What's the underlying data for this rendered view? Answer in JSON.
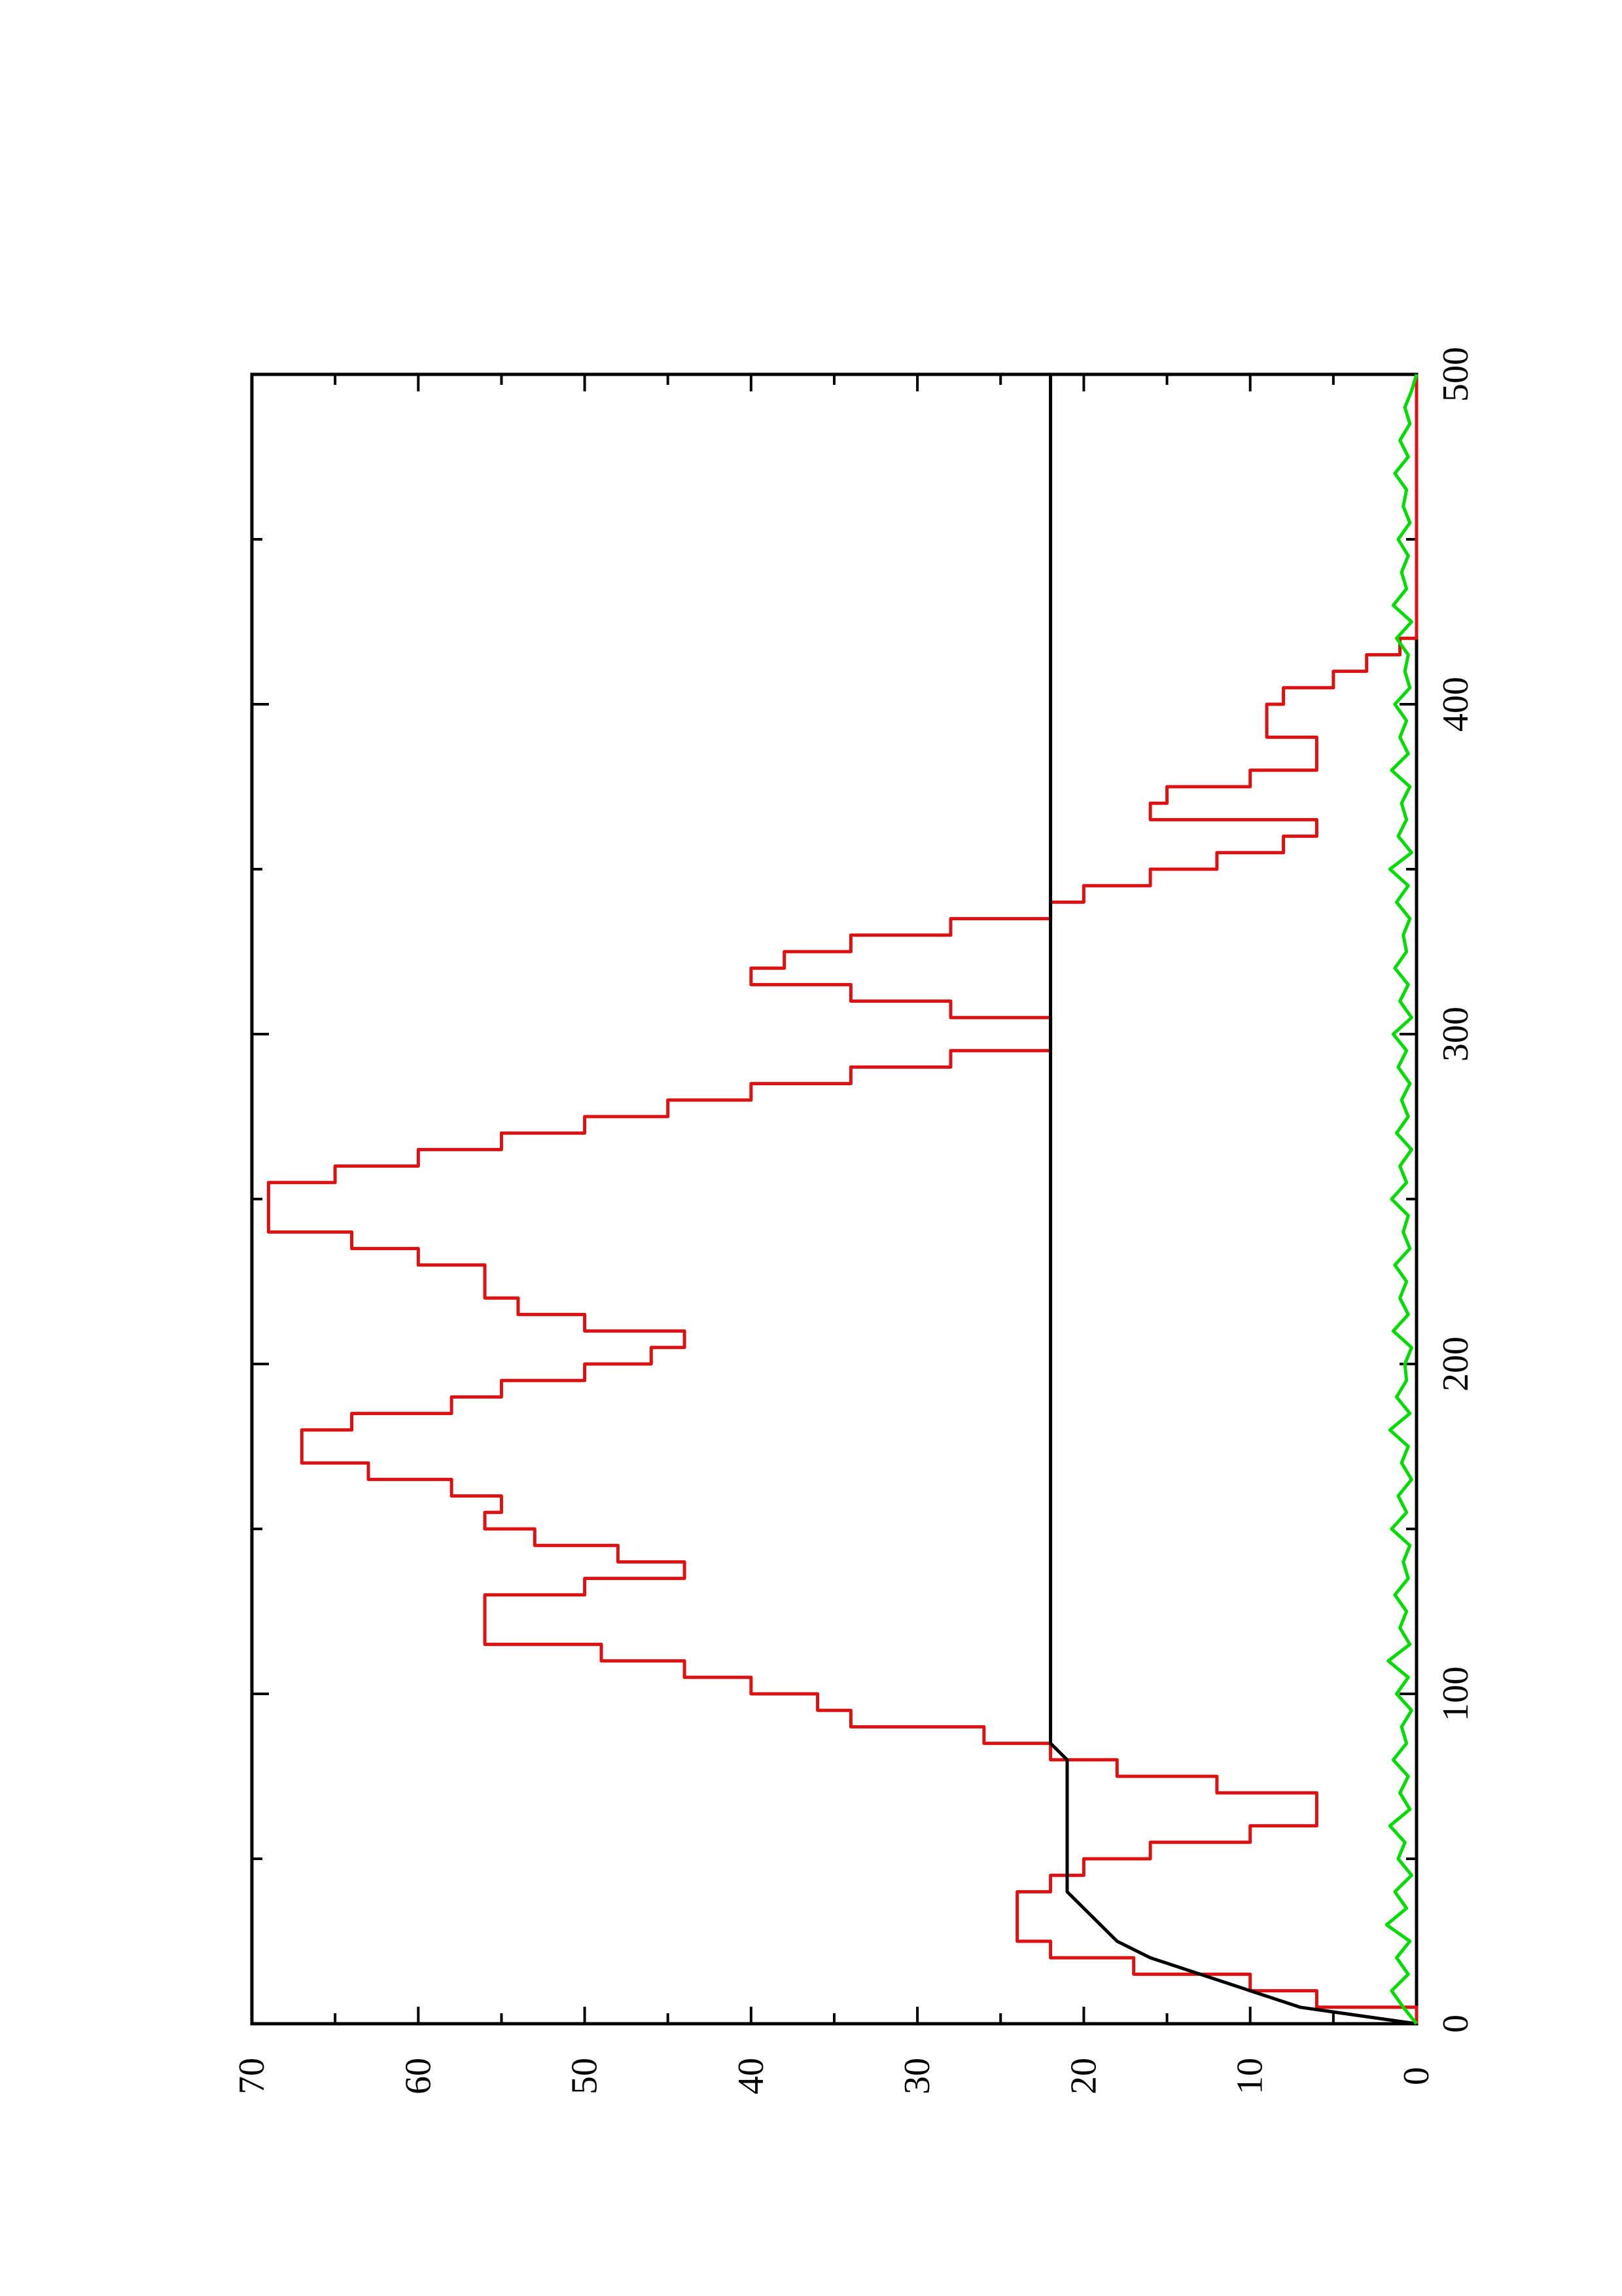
{
  "chart_data": {
    "type": "line",
    "title": "",
    "xlabel": "",
    "ylabel": "",
    "xlim": [
      0,
      500
    ],
    "ylim": [
      0,
      70
    ],
    "x_ticks": [
      0,
      100,
      200,
      300,
      400,
      500
    ],
    "y_ticks": [
      0,
      10,
      20,
      30,
      40,
      50,
      60,
      70
    ],
    "x_tick_labels": [
      "0",
      "100",
      "200",
      "300",
      "400",
      "500"
    ],
    "y_tick_labels": [
      "0",
      "10",
      "20",
      "30",
      "40",
      "50",
      "60",
      "70"
    ],
    "grid": false,
    "orientation": "rotated 90 degrees counter-clockwise",
    "series": [
      {
        "color": "#dd1111",
        "step": true,
        "x": [
          0,
          5,
          10,
          15,
          20,
          25,
          30,
          35,
          40,
          45,
          50,
          55,
          60,
          65,
          70,
          75,
          80,
          85,
          90,
          95,
          100,
          105,
          110,
          115,
          120,
          125,
          130,
          135,
          140,
          145,
          150,
          155,
          160,
          165,
          170,
          175,
          180,
          185,
          190,
          195,
          200,
          205,
          210,
          215,
          220,
          225,
          230,
          235,
          240,
          245,
          250,
          255,
          260,
          265,
          270,
          275,
          280,
          285,
          290,
          295,
          300,
          305,
          310,
          315,
          320,
          325,
          330,
          335,
          340,
          345,
          350,
          355,
          360,
          365,
          370,
          375,
          380,
          385,
          390,
          395,
          400,
          405,
          410,
          415,
          420,
          425,
          430,
          435,
          440,
          445,
          450,
          455,
          460,
          465,
          470,
          475,
          480,
          485,
          490,
          495,
          500
        ],
        "y": [
          0,
          6,
          10,
          17,
          22,
          24,
          24,
          24,
          22,
          20,
          16,
          10,
          6,
          6,
          12,
          18,
          22,
          26,
          34,
          36,
          40,
          44,
          49,
          56,
          56,
          56,
          50,
          44,
          48,
          53,
          56,
          55,
          58,
          63,
          67,
          67,
          64,
          58,
          55,
          50,
          46,
          44,
          50,
          54,
          56,
          56,
          60,
          64,
          69,
          69,
          69,
          65,
          60,
          55,
          50,
          45,
          40,
          34,
          28,
          22,
          22,
          28,
          34,
          40,
          38,
          34,
          28,
          22,
          20,
          16,
          12,
          8,
          6,
          16,
          15,
          10,
          6,
          6,
          9,
          9,
          8,
          5,
          3,
          1,
          0,
          0,
          0,
          0,
          0,
          0,
          0,
          0,
          0,
          0,
          0,
          0,
          0,
          0,
          0,
          0,
          0
        ]
      },
      {
        "color": "#000000",
        "x": [
          0,
          5,
          10,
          15,
          20,
          25,
          30,
          35,
          40,
          45,
          50,
          55,
          60,
          65,
          70,
          75,
          80,
          85,
          90,
          95,
          100,
          105,
          110,
          115,
          120,
          125,
          130,
          135,
          140,
          145,
          150,
          155,
          160,
          165,
          170,
          175,
          180,
          185,
          190,
          195,
          200,
          205,
          210,
          215,
          220,
          225,
          230,
          235,
          240,
          245,
          250,
          255,
          260,
          265,
          270,
          275,
          280,
          285,
          290,
          295,
          300,
          305,
          310,
          315,
          320,
          325,
          330,
          335,
          340,
          345,
          350,
          355,
          360,
          365,
          370,
          375,
          380,
          385,
          390,
          395,
          400,
          405,
          410,
          415,
          420,
          425,
          430,
          435,
          440,
          445,
          450,
          455,
          460,
          465,
          470,
          475,
          480,
          485,
          490,
          495,
          500
        ],
        "y": [
          0,
          7,
          10,
          13,
          16,
          18,
          19,
          20,
          21,
          21,
          21,
          21,
          21,
          21,
          21,
          21,
          21,
          22,
          22,
          22,
          22,
          22,
          22,
          22,
          22,
          22,
          22,
          22,
          22,
          22,
          22,
          22,
          22,
          22,
          22,
          22,
          22,
          22,
          22,
          22,
          22,
          22,
          22,
          22,
          22,
          22,
          22,
          22,
          22,
          22,
          22,
          22,
          22,
          22,
          22,
          22,
          22,
          22,
          22,
          22,
          22,
          22,
          22,
          22,
          22,
          22,
          22,
          22,
          22,
          22,
          22,
          22,
          22,
          22,
          22,
          22,
          22,
          22,
          22,
          22,
          22,
          22,
          22,
          22,
          22,
          22,
          22,
          22,
          22,
          22,
          22,
          22,
          22,
          22,
          22,
          22,
          22,
          22,
          22,
          22,
          22
        ]
      },
      {
        "color": "#00dd00",
        "x": [
          0,
          5,
          10,
          15,
          20,
          25,
          30,
          35,
          40,
          45,
          50,
          55,
          60,
          65,
          70,
          75,
          80,
          85,
          90,
          95,
          100,
          105,
          110,
          115,
          120,
          125,
          130,
          135,
          140,
          145,
          150,
          155,
          160,
          165,
          170,
          175,
          180,
          185,
          190,
          195,
          200,
          205,
          210,
          215,
          220,
          225,
          230,
          235,
          240,
          245,
          250,
          255,
          260,
          265,
          270,
          275,
          280,
          285,
          290,
          295,
          300,
          305,
          310,
          315,
          320,
          325,
          330,
          335,
          340,
          345,
          350,
          355,
          360,
          365,
          370,
          375,
          380,
          385,
          390,
          395,
          400,
          405,
          410,
          415,
          420,
          425,
          430,
          435,
          440,
          445,
          450,
          455,
          460,
          465,
          470,
          475,
          480,
          485,
          490,
          495,
          500
        ],
        "y": [
          0,
          0.8,
          1.5,
          0.5,
          1.2,
          0.4,
          1.8,
          0.6,
          1.3,
          0.3,
          1.1,
          0.7,
          1.6,
          0.4,
          1.0,
          0.5,
          1.4,
          0.6,
          0.9,
          0.3,
          1.2,
          0.5,
          1.7,
          0.4,
          1.0,
          0.6,
          1.3,
          0.5,
          0.8,
          0.4,
          1.5,
          0.6,
          1.1,
          0.3,
          0.9,
          0.5,
          1.6,
          0.4,
          1.2,
          0.6,
          0.7,
          0.3,
          1.4,
          0.5,
          1.0,
          0.6,
          1.3,
          0.4,
          0.8,
          0.5,
          1.5,
          0.6,
          1.0,
          0.3,
          1.2,
          0.5,
          0.9,
          0.4,
          1.1,
          0.6,
          1.4,
          0.3,
          1.0,
          0.5,
          1.3,
          0.6,
          0.8,
          0.4,
          1.2,
          0.5,
          1.6,
          0.3,
          1.1,
          0.6,
          0.9,
          0.4,
          1.5,
          0.5,
          1.0,
          0.6,
          1.3,
          0.4,
          0.7,
          0.5,
          1.2,
          0.3,
          1.4,
          0.6,
          0.9,
          0.5,
          1.1,
          0.4,
          0.8,
          0.6,
          1.3,
          0.5,
          1.0,
          0.4,
          0.7,
          0.3,
          0
        ]
      }
    ]
  }
}
